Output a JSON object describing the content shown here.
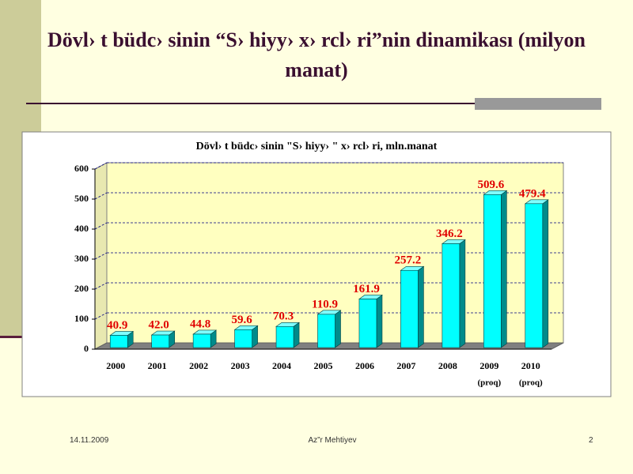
{
  "slide": {
    "title": "Dövl› t büdc› sinin “S› hiyy›  x› rcl› ri”nin dinamikası (milyon manat)",
    "footer": {
      "date": "14.11.2009",
      "author": "Az”r Mehtiyev",
      "page": "2"
    }
  },
  "chart_data": {
    "type": "bar3d",
    "title": "Dövl› t büdc› sinin \"S› hiyy› \" x› rcl› ri, mln.manat",
    "categories": [
      "2000",
      "2001",
      "2002",
      "2003",
      "2004",
      "2005",
      "2006",
      "2007",
      "2008",
      "2009",
      "2010"
    ],
    "category_notes": [
      null,
      null,
      null,
      null,
      null,
      null,
      null,
      null,
      null,
      "(proq)",
      "(proq)"
    ],
    "values": [
      40.9,
      42.0,
      44.8,
      59.6,
      70.3,
      110.9,
      161.9,
      257.2,
      346.2,
      509.6,
      479.4
    ],
    "value_labels": [
      "40.9",
      "42.0",
      "44.8",
      "59.6",
      "70.3",
      "110.9",
      "161.9",
      "257.2",
      "346.2",
      "509.6",
      "479.4"
    ],
    "color": "#00ffff",
    "label_color": "#e00000",
    "ylim": [
      0,
      600
    ],
    "yticks": [
      0,
      100,
      200,
      300,
      400,
      500,
      600
    ],
    "grid": true
  }
}
